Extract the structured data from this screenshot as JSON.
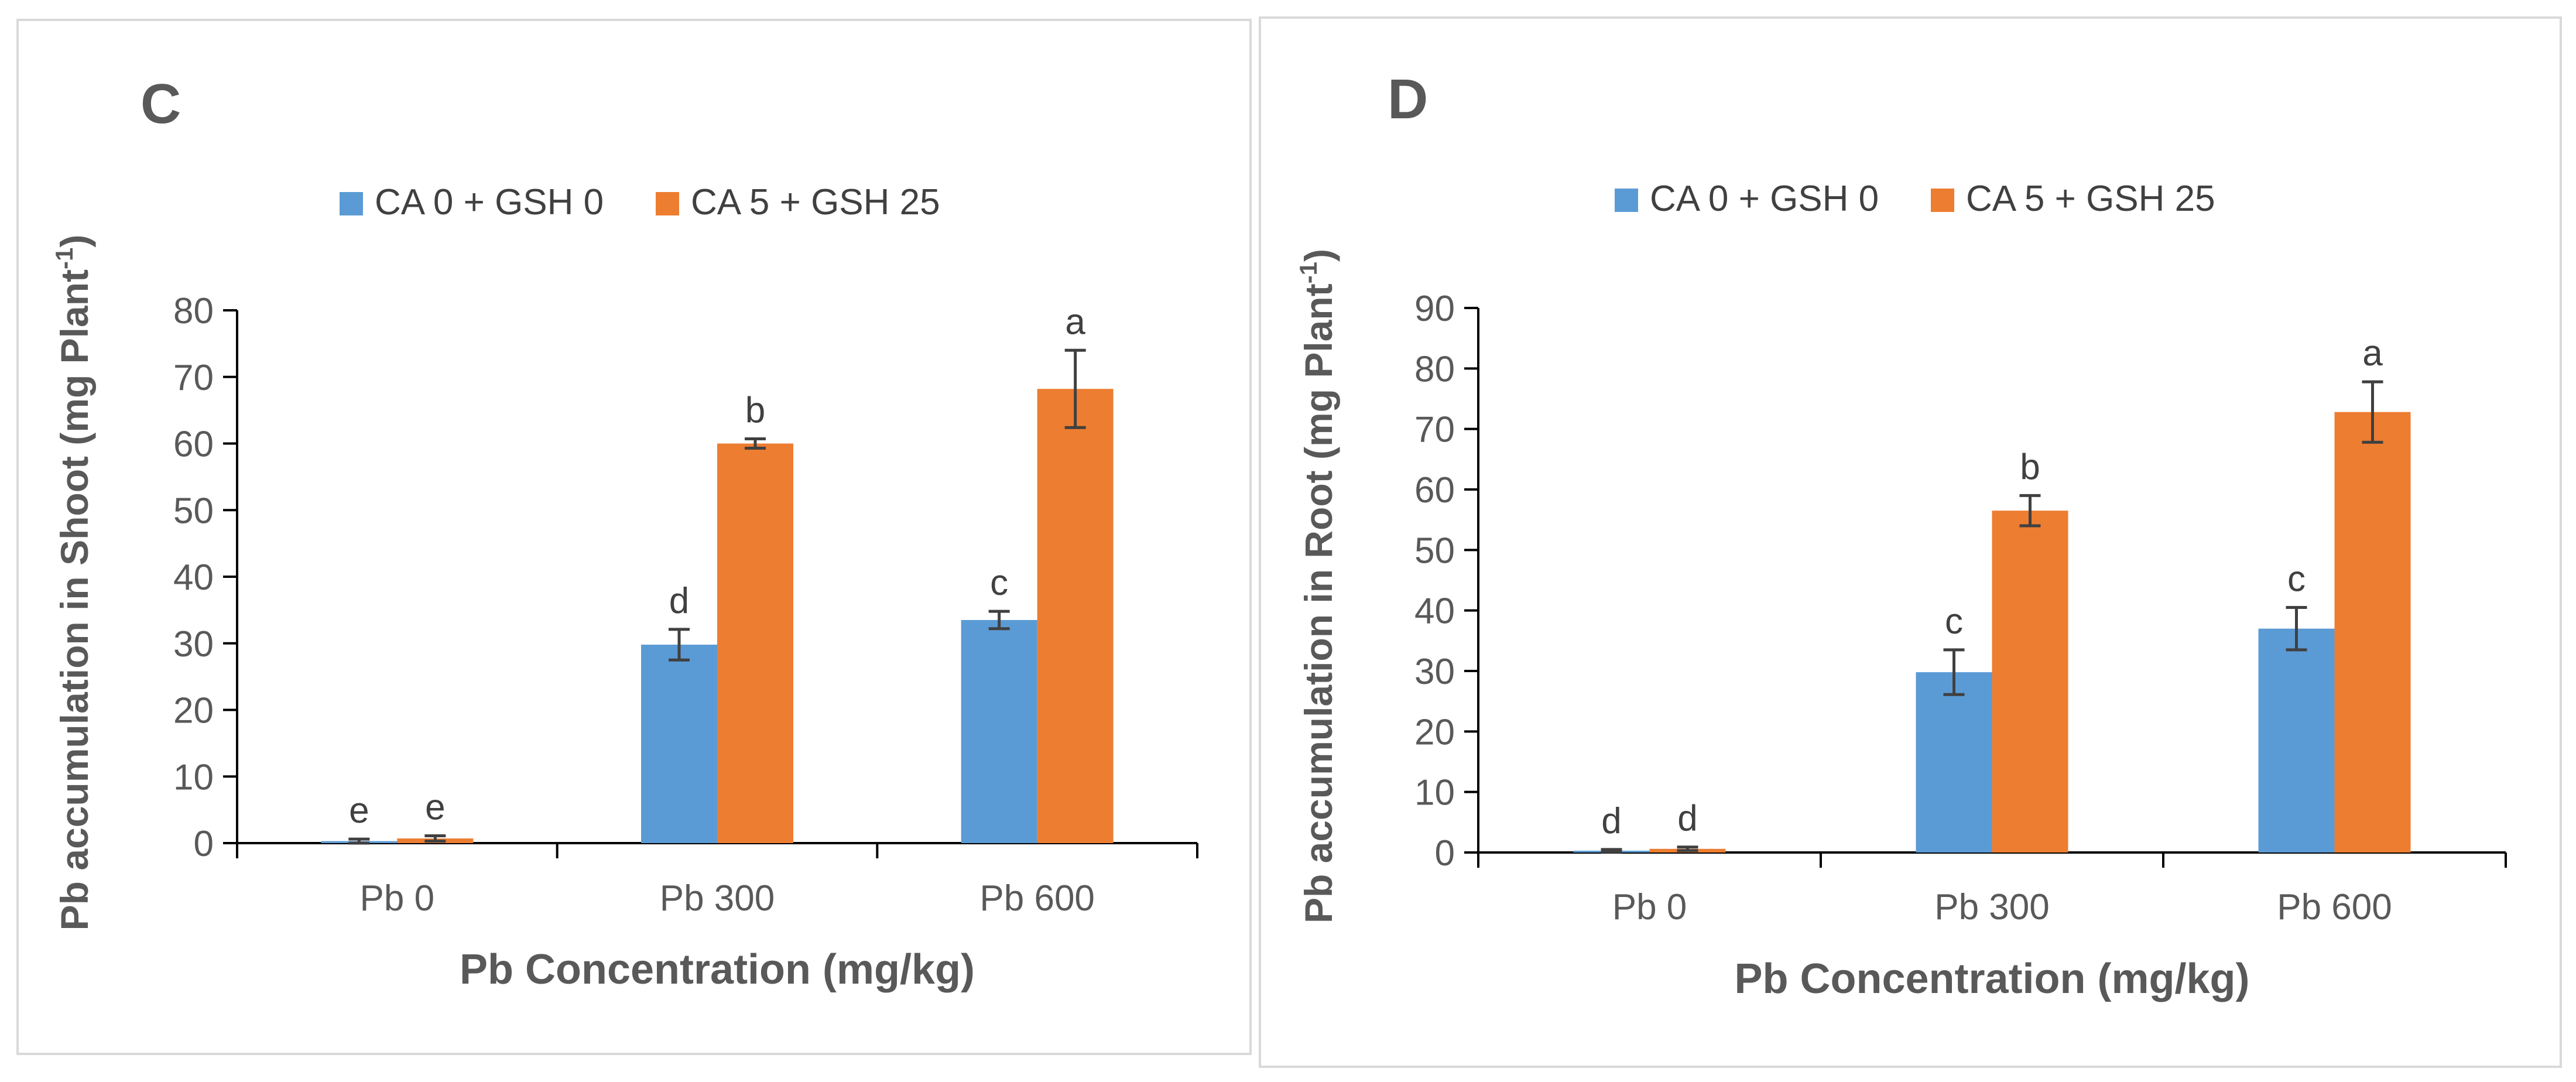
{
  "chart_data": [
    {
      "type": "bar",
      "panel_label": "C",
      "categories": [
        "Pb 0",
        "Pb 300",
        "Pb 600"
      ],
      "series": [
        {
          "name": "CA 0 + GSH 0",
          "color": "#5b9bd5",
          "values": [
            0.3,
            29.8,
            33.5
          ],
          "errors": [
            0.3,
            2.3,
            1.3
          ],
          "letters": [
            "e",
            "d",
            "c"
          ]
        },
        {
          "name": "CA 5 + GSH 25",
          "color": "#ed7d31",
          "values": [
            0.7,
            60.0,
            68.2
          ],
          "errors": [
            0.4,
            0.7,
            5.8
          ],
          "letters": [
            "e",
            "b",
            "a"
          ]
        }
      ],
      "xlabel": "Pb Concentration (mg/kg)",
      "ylabel_main": "Pb accumulation in Shoot (mg Plant",
      "ylabel_sup": "-1",
      "ylabel_close": ")",
      "ylim": [
        0,
        80
      ],
      "yticks": [
        0,
        10,
        20,
        30,
        40,
        50,
        60,
        70,
        80
      ],
      "legend_position": "top-center",
      "grid": false
    },
    {
      "type": "bar",
      "panel_label": "D",
      "categories": [
        "Pb 0",
        "Pb 300",
        "Pb 600"
      ],
      "series": [
        {
          "name": "CA 0 + GSH 0",
          "color": "#5b9bd5",
          "values": [
            0.3,
            29.8,
            37.0
          ],
          "errors": [
            0.2,
            3.7,
            3.5
          ],
          "letters": [
            "d",
            "c",
            "c"
          ]
        },
        {
          "name": "CA 5 + GSH 25",
          "color": "#ed7d31",
          "values": [
            0.6,
            56.5,
            72.8
          ],
          "errors": [
            0.3,
            2.5,
            5.0
          ],
          "letters": [
            "d",
            "b",
            "a"
          ]
        }
      ],
      "xlabel": "Pb Concentration (mg/kg)",
      "ylabel_main": "Pb accumulation in Root (mg Plant",
      "ylabel_sup": "-1",
      "ylabel_close": ")",
      "ylim": [
        0,
        90
      ],
      "yticks": [
        0,
        10,
        20,
        30,
        40,
        50,
        60,
        70,
        80,
        90
      ],
      "legend_position": "top-center",
      "grid": false
    }
  ]
}
